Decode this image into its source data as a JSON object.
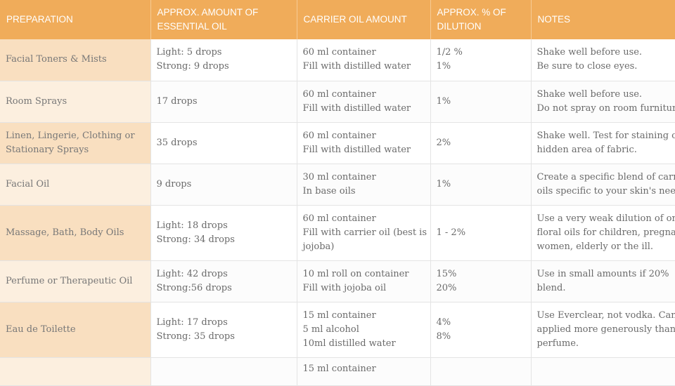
{
  "headers": [
    [
      "PREPARATION"
    ],
    [
      "APPROX. AMOUNT OF",
      "ESSENTIAL OIL"
    ],
    [
      "CARRIER OIL AMOUNT"
    ],
    [
      "APPROX. % OF",
      "DILUTION"
    ],
    [
      "NOTES"
    ]
  ],
  "rows": [
    {
      "preparation": [
        "Facial Toners & Mists"
      ],
      "essential": [
        "Light: 5 drops",
        "Strong: 9 drops"
      ],
      "carrier": [
        "60 ml container",
        "Fill with distilled water"
      ],
      "dilution": [
        "1/2 %",
        "1%"
      ],
      "notes": [
        "Shake well before use.",
        "Be sure to close eyes."
      ]
    },
    {
      "preparation": [
        "Room Sprays"
      ],
      "essential": [
        "17 drops"
      ],
      "carrier": [
        "60 ml container",
        "Fill with distilled water"
      ],
      "dilution": [
        "1%"
      ],
      "notes": [
        "Shake well before use.",
        "Do not spray on room furniture."
      ]
    },
    {
      "preparation": [
        "Linen, Lingerie, Clothing or",
        "Stationary Sprays"
      ],
      "essential": [
        "35 drops"
      ],
      "carrier": [
        "60 ml container",
        "Fill with distilled water"
      ],
      "dilution": [
        "2%"
      ],
      "notes": [
        "Shake well. Test for staining on",
        "hidden area of fabric."
      ]
    },
    {
      "preparation": [
        "Facial Oil"
      ],
      "essential": [
        "9 drops"
      ],
      "carrier": [
        "30 ml container",
        "In base oils"
      ],
      "dilution": [
        "1%"
      ],
      "notes": [
        "Create a specific blend of carrier",
        "oils specific to your skin's needs."
      ]
    },
    {
      "preparation": [
        "Massage, Bath, Body Oils"
      ],
      "essential": [
        "Light: 18 drops",
        "Strong: 34 drops"
      ],
      "carrier": [
        "60 ml container",
        "Fill with carrier oil (best is",
        "jojoba)"
      ],
      "dilution": [
        "1 - 2%"
      ],
      "notes": [
        "Use a very weak dilution of only",
        "floral oils for children, pregnant",
        "women, elderly or the ill."
      ]
    },
    {
      "preparation": [
        "Perfume or Therapeutic Oil"
      ],
      "essential": [
        "Light: 42 drops",
        "Strong:56 drops"
      ],
      "carrier": [
        "10 ml roll on container",
        "Fill with jojoba oil"
      ],
      "dilution": [
        "15%",
        "20%"
      ],
      "notes": [
        "Use in small amounts if 20%",
        "blend."
      ]
    },
    {
      "preparation": [
        "Eau de Toilette"
      ],
      "essential": [
        "Light: 17 drops",
        "Strong: 35 drops"
      ],
      "carrier": [
        "15 ml container",
        "5 ml alcohol",
        "10ml distilled water"
      ],
      "dilution": [
        "4%",
        "8%"
      ],
      "notes": [
        "Use Everclear, not vodka. Can be",
        "applied more generously than",
        "perfume."
      ]
    },
    {
      "preparation": [
        ""
      ],
      "essential": [
        ""
      ],
      "carrier": [
        "15 ml container"
      ],
      "dilution": [
        ""
      ],
      "notes": [
        ""
      ]
    }
  ]
}
